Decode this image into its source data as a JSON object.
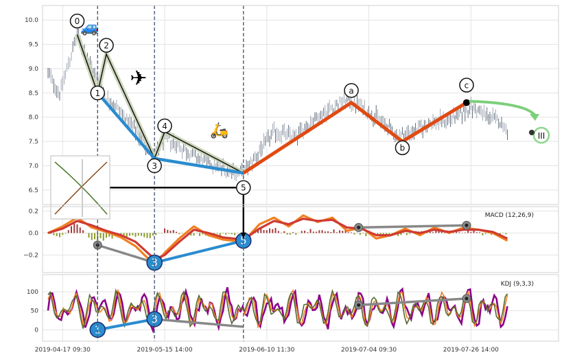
{
  "chart_data": [
    {
      "type": "candlestick",
      "panel": "price",
      "title": "",
      "ylim": [
        6.2,
        10.3
      ],
      "yticks": [
        6.5,
        7.0,
        7.5,
        8.0,
        8.5,
        9.0,
        9.5,
        10.0
      ],
      "ytick_labels": [
        "6.5",
        "7.0",
        "7.5",
        "8.0",
        "8.5",
        "9.0",
        "9.5",
        "10.0"
      ],
      "x_range": [
        0,
        335
      ],
      "xticks": [
        10,
        80,
        150,
        220,
        290
      ],
      "xtick_labels": [
        "2019-04-17 09:30",
        "2019-05-15 14:00",
        "2019-06-10 11:30",
        "2019-07-04 09:30",
        "2019-07-26 14:00"
      ],
      "grid": true,
      "vlines_x": [
        34,
        73,
        134
      ],
      "price_path": [
        [
          0,
          8.9
        ],
        [
          8,
          8.5
        ],
        [
          16,
          9.3
        ],
        [
          20,
          9.7
        ],
        [
          30,
          9.0
        ],
        [
          40,
          8.4
        ],
        [
          50,
          8.1
        ],
        [
          60,
          7.7
        ],
        [
          70,
          7.3
        ],
        [
          73,
          7.15
        ],
        [
          80,
          7.6
        ],
        [
          90,
          7.4
        ],
        [
          100,
          7.2
        ],
        [
          115,
          7.0
        ],
        [
          125,
          6.9
        ],
        [
          134,
          6.85
        ],
        [
          145,
          7.3
        ],
        [
          155,
          7.7
        ],
        [
          170,
          7.6
        ],
        [
          180,
          7.9
        ],
        [
          195,
          8.2
        ],
        [
          205,
          8.35
        ],
        [
          213,
          8.25
        ],
        [
          225,
          8.0
        ],
        [
          240,
          7.6
        ],
        [
          250,
          7.7
        ],
        [
          265,
          7.9
        ],
        [
          280,
          8.0
        ],
        [
          290,
          8.2
        ],
        [
          300,
          8.05
        ],
        [
          310,
          7.9
        ],
        [
          315,
          7.75
        ]
      ],
      "wave_major": [
        [
          34,
          8.5
        ],
        [
          73,
          7.15
        ],
        [
          134,
          6.85
        ]
      ],
      "wave_minor": [
        [
          20,
          9.7
        ],
        [
          34,
          8.5
        ],
        [
          40,
          9.3
        ],
        [
          73,
          7.15
        ],
        [
          80,
          7.7
        ],
        [
          134,
          6.85
        ]
      ],
      "wave_abc": [
        [
          134,
          6.85
        ],
        [
          208,
          8.3
        ],
        [
          243,
          7.5
        ],
        [
          287,
          8.3
        ]
      ],
      "wave_labels": [
        {
          "text": "0",
          "x": 20,
          "y": 9.98
        },
        {
          "text": "2",
          "x": 40,
          "y": 9.48
        },
        {
          "text": "1",
          "x": 34,
          "y": 8.5
        },
        {
          "text": "4",
          "x": 80,
          "y": 7.82
        },
        {
          "text": "3",
          "x": 73,
          "y": 7.0
        },
        {
          "text": "5",
          "x": 134,
          "y": 6.55
        },
        {
          "text": "a",
          "x": 208,
          "y": 8.55
        },
        {
          "text": "b",
          "x": 243,
          "y": 7.37
        },
        {
          "text": "c",
          "x": 287,
          "y": 8.66
        }
      ],
      "target_label": "III",
      "target_line": {
        "x_start": 40,
        "x_end": 134,
        "y": 6.55
      }
    },
    {
      "type": "line",
      "panel": "macd",
      "title": "MACD (12,26,9)",
      "ylim": [
        -0.36,
        0.24
      ],
      "yticks": [
        -0.2,
        0.0,
        0.2
      ],
      "ytick_labels": [
        "−0.2",
        "0.0",
        "0.2"
      ],
      "grid": true,
      "series": [
        {
          "values": [
            [
              0,
              0.0
            ],
            [
              10,
              0.06
            ],
            [
              20,
              0.14
            ],
            [
              30,
              0.05
            ],
            [
              40,
              0.01
            ],
            [
              50,
              -0.04
            ],
            [
              60,
              -0.12
            ],
            [
              70,
              -0.25
            ],
            [
              73,
              -0.3
            ],
            [
              80,
              -0.18
            ],
            [
              90,
              -0.05
            ],
            [
              100,
              0.06
            ],
            [
              110,
              -0.02
            ],
            [
              120,
              -0.06
            ],
            [
              134,
              -0.08
            ],
            [
              145,
              0.08
            ],
            [
              155,
              0.14
            ],
            [
              165,
              0.06
            ],
            [
              175,
              0.16
            ],
            [
              185,
              0.1
            ],
            [
              195,
              0.14
            ],
            [
              205,
              0.02
            ],
            [
              215,
              0.05
            ],
            [
              225,
              -0.05
            ],
            [
              235,
              -0.02
            ],
            [
              245,
              0.04
            ],
            [
              255,
              -0.02
            ],
            [
              265,
              0.05
            ],
            [
              275,
              0.0
            ],
            [
              285,
              0.05
            ],
            [
              295,
              0.03
            ],
            [
              305,
              0.0
            ],
            [
              315,
              -0.07
            ]
          ]
        },
        {
          "values": [
            [
              0,
              0.0
            ],
            [
              10,
              0.04
            ],
            [
              20,
              0.11
            ],
            [
              30,
              0.07
            ],
            [
              40,
              0.02
            ],
            [
              50,
              -0.02
            ],
            [
              60,
              -0.08
            ],
            [
              70,
              -0.2
            ],
            [
              73,
              -0.24
            ],
            [
              80,
              -0.2
            ],
            [
              90,
              -0.08
            ],
            [
              100,
              0.03
            ],
            [
              110,
              0.0
            ],
            [
              120,
              -0.04
            ],
            [
              134,
              -0.06
            ],
            [
              145,
              0.04
            ],
            [
              155,
              0.11
            ],
            [
              165,
              0.08
            ],
            [
              175,
              0.13
            ],
            [
              185,
              0.11
            ],
            [
              195,
              0.12
            ],
            [
              205,
              0.05
            ],
            [
              215,
              0.04
            ],
            [
              225,
              -0.02
            ],
            [
              235,
              -0.02
            ],
            [
              245,
              0.02
            ],
            [
              255,
              0.0
            ],
            [
              265,
              0.03
            ],
            [
              275,
              0.01
            ],
            [
              285,
              0.03
            ],
            [
              295,
              0.03
            ],
            [
              305,
              0.01
            ],
            [
              315,
              -0.05
            ]
          ]
        }
      ],
      "hist_from_path": true,
      "divergence_blue": [
        [
          73,
          -0.27
        ],
        [
          134,
          -0.07
        ]
      ],
      "divergence_gray": [
        [
          34,
          -0.11
        ],
        [
          73,
          -0.27
        ]
      ],
      "divergence_gray_right": [
        [
          213,
          0.05
        ],
        [
          287,
          0.07
        ]
      ],
      "blue_labels": [
        {
          "text": "3",
          "x": 73,
          "y": -0.27
        },
        {
          "text": "5",
          "x": 134,
          "y": -0.07
        }
      ]
    },
    {
      "type": "line",
      "panel": "kdj",
      "title": "KDJ (9,3,3)",
      "ylim": [
        -30,
        145
      ],
      "yticks": [
        0,
        50,
        100
      ],
      "ytick_labels": [
        "0",
        "50",
        "100"
      ],
      "grid": true,
      "divergence_blue": [
        [
          34,
          0
        ],
        [
          73,
          28
        ]
      ],
      "divergence_gray": [
        [
          73,
          28
        ],
        [
          134,
          8
        ]
      ],
      "divergence_gray_right": [
        [
          213,
          65
        ],
        [
          287,
          82
        ]
      ],
      "blue_labels": [
        {
          "text": "1",
          "x": 34,
          "y": 0
        },
        {
          "text": "3",
          "x": 73,
          "y": 28
        }
      ]
    }
  ]
}
